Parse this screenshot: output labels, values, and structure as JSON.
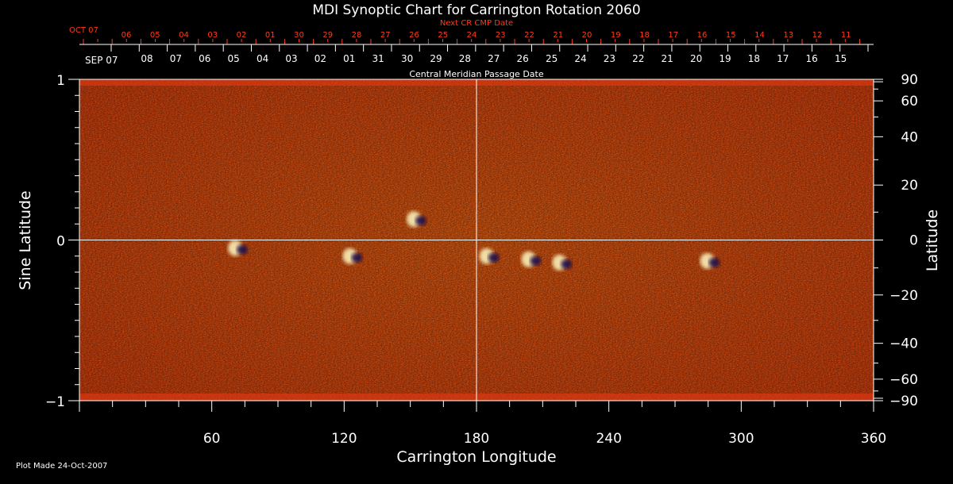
{
  "chart_data": {
    "type": "heatmap",
    "title": "MDI Synoptic Chart for Carrington Rotation 2060",
    "xlabel": "Carrington Longitude",
    "ylabel_left": "Sine Latitude",
    "ylabel_right": "Latitude",
    "xlim": [
      0,
      360
    ],
    "ylim": [
      -1,
      1
    ],
    "x_ticks": [
      60,
      120,
      180,
      240,
      300,
      360
    ],
    "y_ticks_left": [
      {
        "value": 1,
        "label": "1"
      },
      {
        "value": 0,
        "label": "0"
      },
      {
        "value": -1,
        "label": "−1"
      }
    ],
    "y_ticks_right": [
      {
        "value": 90,
        "label": "90"
      },
      {
        "value": 60,
        "label": "60"
      },
      {
        "value": 40,
        "label": "40"
      },
      {
        "value": 20,
        "label": "20"
      },
      {
        "value": 0,
        "label": "0"
      },
      {
        "value": -20,
        "label": "−20"
      },
      {
        "value": -40,
        "label": "−40"
      },
      {
        "value": -60,
        "label": "−60"
      },
      {
        "value": -90,
        "label": "−90"
      }
    ],
    "top_axis": {
      "label": "Central Meridian Passage Date",
      "start_label": "SEP 07",
      "dates": [
        "08",
        "07",
        "06",
        "05",
        "04",
        "03",
        "02",
        "01",
        "31",
        "30",
        "29",
        "28",
        "27",
        "26",
        "25",
        "24",
        "23",
        "22",
        "21",
        "20",
        "19",
        "18",
        "17",
        "16",
        "15"
      ]
    },
    "top_axis_next": {
      "label": "Next CR CMP Date",
      "start_label": "OCT 07",
      "dates": [
        "06",
        "05",
        "04",
        "03",
        "02",
        "01",
        "30",
        "29",
        "28",
        "27",
        "26",
        "25",
        "24",
        "23",
        "22",
        "21",
        "20",
        "19",
        "18",
        "17",
        "16",
        "15",
        "14",
        "13",
        "12",
        "11"
      ]
    },
    "crosshair": {
      "longitude": 180,
      "sine_latitude": 0
    },
    "colormap": [
      "#1a0a4a",
      "#8a1010",
      "#e02a10",
      "#ff5a14",
      "#ff8c1e",
      "#ffd24a",
      "#ffffd8"
    ],
    "active_regions": [
      {
        "longitude": 72,
        "sine_latitude": -0.05
      },
      {
        "longitude": 124,
        "sine_latitude": -0.1
      },
      {
        "longitude": 153,
        "sine_latitude": 0.13
      },
      {
        "longitude": 186,
        "sine_latitude": -0.1
      },
      {
        "longitude": 205,
        "sine_latitude": -0.12
      },
      {
        "longitude": 219,
        "sine_latitude": -0.14
      },
      {
        "longitude": 286,
        "sine_latitude": -0.13
      }
    ]
  },
  "footer": {
    "plot_made": "Plot Made 24-Oct-2007"
  }
}
